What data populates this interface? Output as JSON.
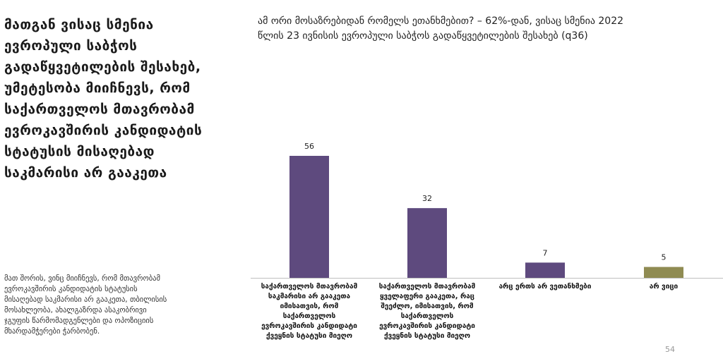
{
  "left_panel": {
    "title_lines": [
      "მათგან ვისაც სმენია",
      "ევროპული საბჭოს",
      "გადაწყვეტილების შესახებ,",
      "უმეტესობა მიიჩნევს, რომ",
      "საქართველოს მთავრობამ",
      "ევროკავშირის კანდიდატის",
      "სტატუსის მისაღებად",
      "საკმარისი არ გააკეთა"
    ],
    "note_lines": [
      "მათ შორის, ვინც მიიჩნევს, რომ მთავრობამ",
      "ევროკავშირის კანდიდატის სტატუსის",
      "მისაღებად საკმარისი არ გააკეთა, თბილისის",
      "მოსახლეობა, ახალგაზრდა ასაკობრივი",
      "ჯგუფის წარმომადგენლები და ოპოზიციის",
      "მხარდამჭერები ჭარბობენ."
    ]
  },
  "page_number": "54",
  "colors": {
    "purple": "#5e4a7e",
    "olive": "#8f8b52",
    "axis": "#bfbfbf"
  },
  "chart_data": {
    "type": "bar",
    "title_lines": [
      "ამ ორი მოსაზრებიდან რომელს ეთანხმებით? – 62%-დან, ვისაც სმენია 2022",
      "წლის 23 ივნისის ევროპული საბჭოს გადაწყვეტილების შესახებ (q36)"
    ],
    "categories": [
      [
        "საქართველოს მთავრობამ",
        "საკმარისი არ გააკეთა",
        "იმისათვის, რომ",
        "საქართველოს",
        "ევროკავშირის კანდიდატი",
        "ქვეყნის სტატუსი მიეღო"
      ],
      [
        "საქართველოს მთავრობამ",
        "ყველაფერი გააკეთა, რაც",
        "შეეძლო, იმისათვის, რომ",
        "საქართველოს",
        "ევროკავშირის კანდიდატი",
        "ქვეყნის სტატუსი მიეღო"
      ],
      [
        "არც ერთს არ ვეთანხმები"
      ],
      [
        "არ ვიცი"
      ]
    ],
    "values": [
      56,
      32,
      7,
      5
    ],
    "bar_colors": [
      "#5e4a7e",
      "#5e4a7e",
      "#5e4a7e",
      "#8f8b52"
    ]
  }
}
